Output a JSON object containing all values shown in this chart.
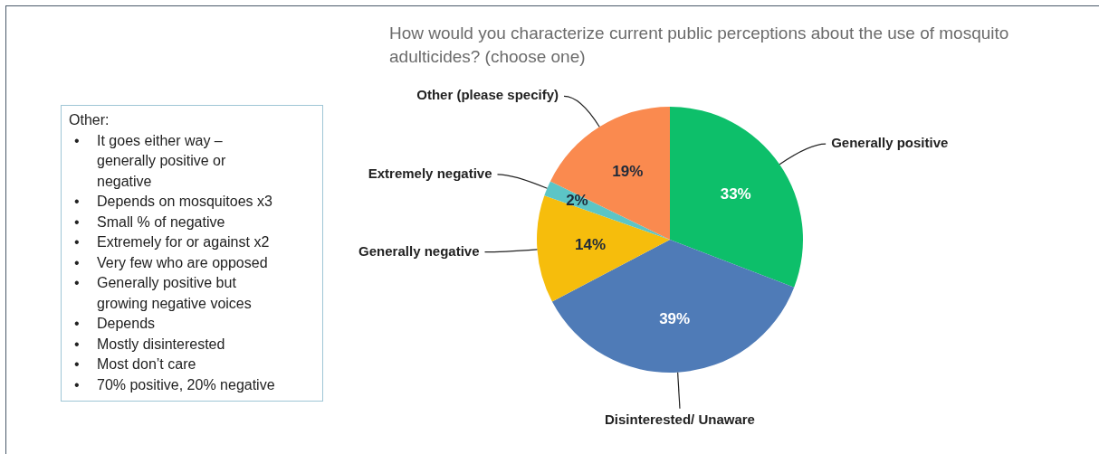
{
  "chart_data": {
    "type": "pie",
    "title": "How would you characterize current public perceptions about the use of mosquito adulticides? (choose one)",
    "categories": [
      "Generally positive",
      "Disinterested/ Unaware",
      "Generally negative",
      "Extremely negative",
      "Other (please specify)"
    ],
    "values": [
      33,
      39,
      14,
      2,
      19
    ],
    "value_labels": [
      "33%",
      "39%",
      "14%",
      "2%",
      "19%"
    ],
    "colors": [
      "#0dbf6a",
      "#4f7bb7",
      "#f6bd0c",
      "#5cc5c6",
      "#fa8a4f"
    ],
    "legend": false,
    "annotations": [
      "Other:",
      "•\tIt goes either way – generally positive or negative",
      "•\tDepends on mosquitoes x3",
      "•\tSmall % of negative",
      "•\tExtremely for or against x2",
      "•\tVery few who are opposed",
      "•\tGenerally positive but growing negative voices",
      "•\tDepends",
      "•\tMostly disinterested",
      "•\tMost don’t care",
      "•\t70% positive, 20% negative"
    ]
  }
}
